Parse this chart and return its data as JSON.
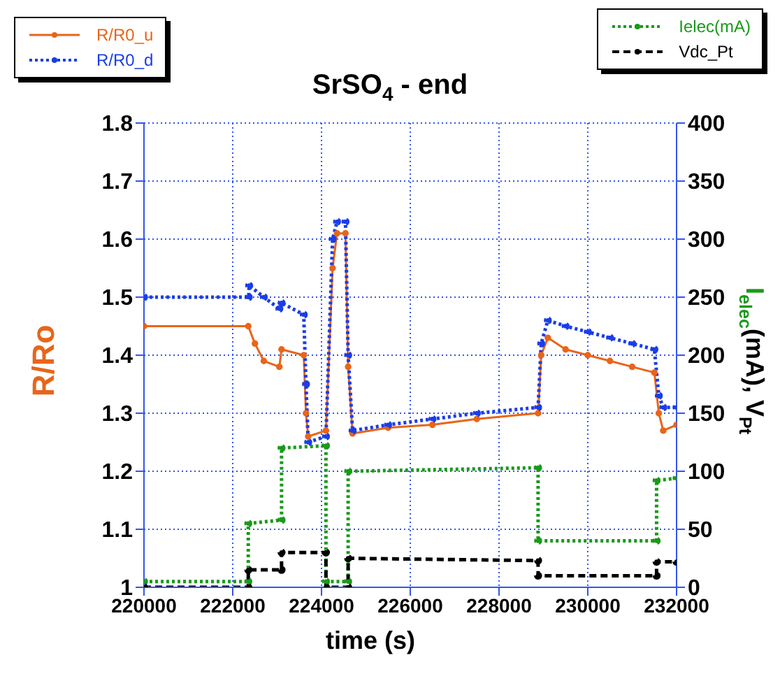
{
  "chart_data": {
    "type": "line",
    "title": "SrSO$_{4}$ - end",
    "xlabel": "time (s)",
    "ylabel": "R/Ro",
    "y2label": "I$_{elec}$(mA), V$_{Pt}$",
    "xlim": [
      220000,
      232000
    ],
    "xticks": [
      220000,
      222000,
      224000,
      226000,
      228000,
      230000,
      232000
    ],
    "ylim": [
      1,
      1.8
    ],
    "yticks": [
      1,
      1.1,
      1.2,
      1.3,
      1.4,
      1.5,
      1.6,
      1.7,
      1.8
    ],
    "y2lim": [
      0,
      400
    ],
    "y2ticks": [
      0,
      50,
      100,
      150,
      200,
      250,
      300,
      350,
      400
    ],
    "grid": true,
    "legend": "top",
    "marker": "circle",
    "series": [
      {
        "name": "R/R0_u",
        "color": "#e8651a",
        "line_style": "solid",
        "x": [
          220000,
          222350,
          222500,
          222700,
          223050,
          223100,
          223600,
          223650,
          223700,
          224100,
          224250,
          224350,
          224540,
          224600,
          224700,
          225500,
          226500,
          227500,
          228880,
          228950,
          229100,
          229500,
          230000,
          230500,
          231000,
          231500,
          231600,
          231700,
          232000
        ],
        "values": [
          1.45,
          1.45,
          1.42,
          1.39,
          1.38,
          1.41,
          1.4,
          1.3,
          1.26,
          1.27,
          1.55,
          1.61,
          1.61,
          1.38,
          1.265,
          1.275,
          1.28,
          1.29,
          1.3,
          1.4,
          1.43,
          1.41,
          1.4,
          1.39,
          1.38,
          1.37,
          1.3,
          1.27,
          1.28
        ]
      },
      {
        "name": "R/R0_d",
        "color": "#1a3de8",
        "line_style": "dotted",
        "x": [
          220000,
          222360,
          222370,
          222700,
          223050,
          223100,
          223600,
          223650,
          223700,
          224100,
          224250,
          224350,
          224540,
          224600,
          224700,
          225500,
          226500,
          227500,
          228880,
          228950,
          229100,
          229500,
          230000,
          230500,
          231000,
          231500,
          231600,
          231700,
          232000
        ],
        "values": [
          1.5,
          1.5,
          1.52,
          1.5,
          1.48,
          1.49,
          1.47,
          1.35,
          1.25,
          1.26,
          1.6,
          1.63,
          1.63,
          1.4,
          1.27,
          1.28,
          1.29,
          1.3,
          1.31,
          1.42,
          1.46,
          1.45,
          1.44,
          1.43,
          1.42,
          1.41,
          1.33,
          1.31,
          1.31
        ]
      },
      {
        "name": "Ielec(mA)",
        "color": "#1a9a1a",
        "line_style": "dotted",
        "axis": "y2",
        "x": [
          220000,
          222350,
          222350,
          223100,
          223100,
          224100,
          224100,
          224600,
          224600,
          228880,
          228880,
          231550,
          231550,
          232000
        ],
        "values": [
          5,
          5,
          55,
          58,
          120,
          122,
          5,
          5,
          100,
          103,
          40,
          40,
          92,
          94
        ]
      },
      {
        "name": "Vdc_Pt",
        "color": "#000000",
        "line_style": "dashed",
        "axis": "y2",
        "x": [
          220000,
          222350,
          222350,
          223100,
          223100,
          224100,
          224100,
          224600,
          224600,
          228880,
          228880,
          231550,
          231550,
          232000
        ],
        "values": [
          0,
          0,
          15,
          15,
          30,
          30,
          0,
          0,
          25,
          23,
          10,
          10,
          22,
          22
        ]
      }
    ]
  }
}
